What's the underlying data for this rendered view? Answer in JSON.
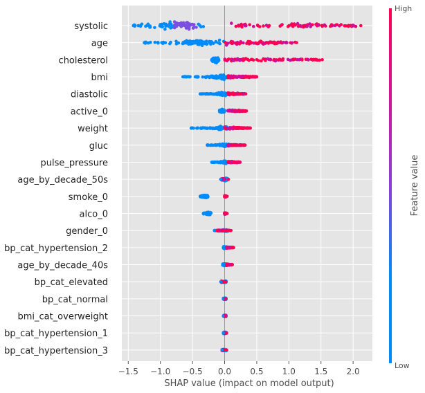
{
  "chart_data": {
    "type": "scatter",
    "subtype": "shap-beeswarm",
    "xlabel": "SHAP value (impact on model output)",
    "xlim": [
      -1.6,
      2.3
    ],
    "xticks": [
      -1.5,
      -1.0,
      -0.5,
      0.0,
      0.5,
      1.0,
      1.5,
      2.0
    ],
    "xtick_labels": [
      "−1.5",
      "−1.0",
      "−0.5",
      "0.0",
      "0.5",
      "1.0",
      "1.5",
      "2.0"
    ],
    "colorbar": {
      "label": "Feature value",
      "high_label": "High",
      "low_label": "Low"
    },
    "colors": {
      "low": "#008bfb",
      "mid": "#7b4fe0",
      "high": "#ff0052",
      "background": "#e5e5e5",
      "grid": "#ffffff",
      "zero_line": "#999999"
    },
    "features": [
      {
        "name": "systolic",
        "min": -1.42,
        "max": 2.12,
        "low_center": -0.62,
        "high_range": [
          0.1,
          2.1
        ],
        "spread": 1.0
      },
      {
        "name": "age",
        "min": -1.25,
        "max": 1.12,
        "low_center": -0.35,
        "high_range": [
          0.0,
          1.1
        ],
        "spread": 0.75
      },
      {
        "name": "cholesterol",
        "min": -0.2,
        "max": 1.52,
        "low_center": -0.13,
        "high_range": [
          0.0,
          1.5
        ],
        "spread": 0.55
      },
      {
        "name": "bmi",
        "min": -0.65,
        "max": 0.5,
        "low_center": -0.05,
        "high_range": [
          0.05,
          0.5
        ],
        "spread": 0.5
      },
      {
        "name": "diastolic",
        "min": -0.38,
        "max": 0.33,
        "low_center": -0.03,
        "high_range": [
          0.05,
          0.32
        ],
        "spread": 0.4
      },
      {
        "name": "active_0",
        "min": -0.08,
        "max": 0.34,
        "low_center": -0.04,
        "high_range": [
          0.05,
          0.33
        ],
        "spread": 0.35
      },
      {
        "name": "weight",
        "min": -0.52,
        "max": 0.4,
        "low_center": -0.05,
        "high_range": [
          0.0,
          0.4
        ],
        "spread": 0.42
      },
      {
        "name": "gluc",
        "min": -0.27,
        "max": 0.32,
        "low_center": 0.0,
        "high_range": [
          0.05,
          0.32
        ],
        "spread": 0.3
      },
      {
        "name": "pulse_pressure",
        "min": -0.2,
        "max": 0.24,
        "low_center": 0.0,
        "high_range": [
          0.05,
          0.24
        ],
        "spread": 0.28
      },
      {
        "name": "age_by_decade_50s",
        "min": -0.06,
        "max": 0.06,
        "low_center": 0.02,
        "high_range": [
          -0.05,
          0.0
        ],
        "spread": 0.3
      },
      {
        "name": "smoke_0",
        "min": -0.38,
        "max": 0.04,
        "low_center": -0.3,
        "high_range": [
          0.0,
          0.03
        ],
        "spread": 0.3
      },
      {
        "name": "alco_0",
        "min": -0.33,
        "max": 0.04,
        "low_center": -0.25,
        "high_range": [
          0.0,
          0.03
        ],
        "spread": 0.3
      },
      {
        "name": "gender_0",
        "min": -0.16,
        "max": 0.1,
        "low_center": 0.02,
        "high_range": [
          -0.12,
          0.08
        ],
        "spread": 0.25
      },
      {
        "name": "bp_cat_hypertension_2",
        "min": -0.02,
        "max": 0.14,
        "low_center": 0.0,
        "high_range": [
          0.03,
          0.14
        ],
        "spread": 0.22
      },
      {
        "name": "age_by_decade_40s",
        "min": -0.03,
        "max": 0.12,
        "low_center": 0.0,
        "high_range": [
          0.03,
          0.12
        ],
        "spread": 0.22
      },
      {
        "name": "bp_cat_elevated",
        "min": -0.06,
        "max": 0.02,
        "low_center": 0.01,
        "high_range": [
          -0.05,
          -0.01
        ],
        "spread": 0.2
      },
      {
        "name": "bp_cat_normal",
        "min": -0.02,
        "max": 0.02,
        "low_center": 0.0,
        "high_range": [
          -0.01,
          0.01
        ],
        "spread": 0.18
      },
      {
        "name": "bmi_cat_overweight",
        "min": -0.02,
        "max": 0.02,
        "low_center": 0.0,
        "high_range": [
          -0.01,
          0.01
        ],
        "spread": 0.18
      },
      {
        "name": "bp_cat_hypertension_1",
        "min": -0.02,
        "max": 0.03,
        "low_center": 0.0,
        "high_range": [
          0.0,
          0.02
        ],
        "spread": 0.18
      },
      {
        "name": "bp_cat_hypertension_3",
        "min": -0.04,
        "max": 0.03,
        "low_center": 0.0,
        "high_range": [
          -0.04,
          -0.01
        ],
        "spread": 0.18
      }
    ]
  }
}
